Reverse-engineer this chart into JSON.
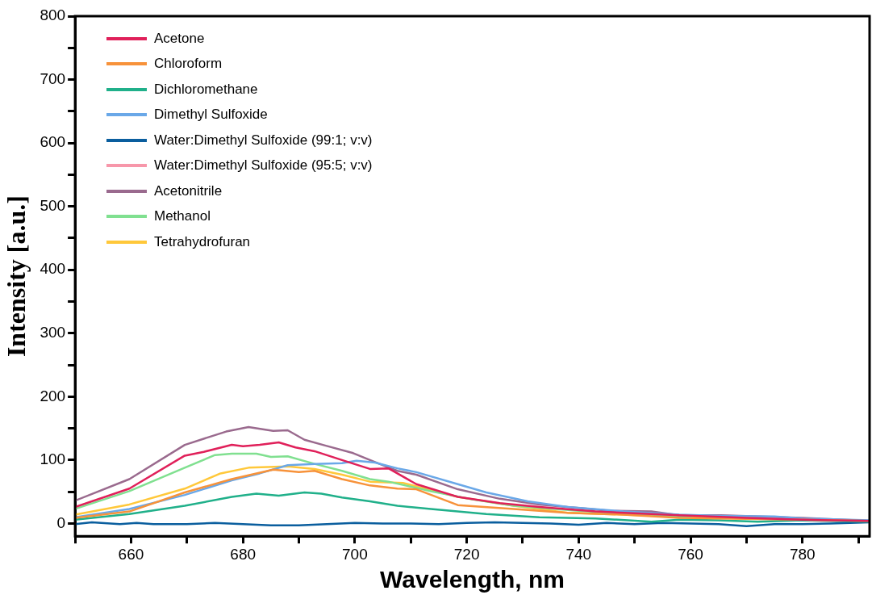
{
  "chart_data": {
    "type": "line",
    "xlabel": "Wavelength, nm",
    "ylabel": "Intensity [a.u.]",
    "xlim": [
      650,
      792
    ],
    "xticks": [
      {
        "value": 650,
        "label": null
      },
      660,
      {
        "value": 670,
        "label": null
      },
      680,
      {
        "value": 690,
        "label": null
      },
      700,
      {
        "value": 710,
        "label": null
      },
      720,
      {
        "value": 730,
        "label": null
      },
      740,
      {
        "value": 750,
        "label": null
      },
      760,
      {
        "value": 770,
        "label": null
      },
      780,
      {
        "value": 790,
        "label": null
      }
    ],
    "ylim": [
      -20,
      800
    ],
    "yticks": [
      0,
      {
        "value": 50,
        "label": null
      },
      100,
      {
        "value": 150,
        "label": null
      },
      200,
      {
        "value": 250,
        "label": null
      },
      300,
      {
        "value": 350,
        "label": null
      },
      400,
      {
        "value": 450,
        "label": null
      },
      500,
      {
        "value": 550,
        "label": null
      },
      600,
      {
        "value": 650,
        "label": null
      },
      700,
      {
        "value": 750,
        "label": null
      },
      800
    ],
    "grid": false,
    "legend": "top left",
    "marker": "none",
    "line_style": "solid",
    "series": [
      {
        "name": "Acetone",
        "color": "#e0205a",
        "x": [
          650,
          659.7,
          669.6,
          673,
          678,
          680,
          683,
          686.4,
          689.4,
          692.8,
          697.7,
          702.7,
          706,
          711,
          718.4,
          725.9,
          733,
          743,
          753,
          758,
          770,
          780,
          792
        ],
        "values": [
          26,
          55,
          107,
          113,
          124,
          122,
          124,
          128,
          120,
          114,
          100,
          86,
          87,
          62,
          42,
          32,
          26,
          19,
          15,
          13,
          9,
          6,
          4
        ]
      },
      {
        "name": "Chloroform",
        "color": "#f7923a",
        "x": [
          650,
          659.7,
          669.6,
          678,
          685.4,
          690,
          692.8,
          697.7,
          702.7,
          707.6,
          711,
          718.4,
          728.4,
          738,
          748,
          758,
          765,
          780,
          792
        ],
        "values": [
          9,
          19,
          49,
          70,
          85,
          81,
          83,
          70,
          60,
          55,
          54,
          29,
          23,
          17,
          14,
          9,
          8,
          6,
          4
        ]
      },
      {
        "name": "Dichloromethane",
        "color": "#20b08a",
        "x": [
          650,
          659.7,
          669.6,
          678,
          682.4,
          686.4,
          691,
          694,
          697.7,
          702.7,
          707.6,
          713.6,
          723.5,
          733,
          743,
          753,
          758,
          765,
          772,
          780,
          792
        ],
        "values": [
          6,
          15,
          28,
          42,
          47,
          44,
          49,
          47,
          41,
          35,
          28,
          23,
          15,
          10,
          8,
          3,
          6,
          5,
          3,
          5,
          3
        ]
      },
      {
        "name": "Dimethyl Sulfoxide",
        "color": "#6aa8e8",
        "x": [
          650,
          659.7,
          669.6,
          678,
          683,
          688,
          692.8,
          697.7,
          700.3,
          703.6,
          707.6,
          711,
          718.4,
          723.5,
          730.9,
          738,
          748,
          758,
          765,
          775,
          780,
          792
        ],
        "values": [
          10,
          23,
          45,
          68,
          79,
          92,
          94,
          95,
          99,
          96,
          87,
          81,
          62,
          49,
          35,
          26,
          19,
          14,
          12,
          11,
          8,
          5
        ]
      },
      {
        "name": "Water:Dimethyl Sulfoxide (99:1; v:v)",
        "color": "#0a5e9e",
        "x": [
          650,
          653,
          658,
          661,
          664,
          670,
          675,
          685,
          690,
          695,
          700,
          705,
          710,
          715,
          720,
          725,
          730,
          735,
          740,
          745,
          750,
          755,
          760,
          765,
          770,
          775,
          780,
          785,
          792
        ],
        "values": [
          -1,
          2,
          -1,
          1,
          -1,
          -1,
          1,
          -3,
          -3,
          -1,
          1,
          0,
          0,
          -1,
          1,
          2,
          1,
          0,
          -2,
          1,
          -1,
          1,
          0,
          -1,
          -4,
          -1,
          -1,
          0,
          2
        ]
      },
      {
        "name": "Water:Dimethyl Sulfoxide (95:5; v:v)",
        "color": "#f797aa"
      },
      {
        "name": "Acetonitrile",
        "color": "#9a6a8e",
        "x": [
          650,
          659.7,
          669.6,
          677,
          681,
          685.4,
          688,
          691,
          694.7,
          699.7,
          703.6,
          707.6,
          711,
          718.4,
          725.9,
          733,
          738,
          745.7,
          753,
          758,
          765.4,
          780,
          792
        ],
        "values": [
          36,
          70,
          124,
          145,
          152,
          146,
          147,
          132,
          123,
          111,
          97,
          83,
          77,
          54,
          39,
          30,
          26,
          20,
          19,
          13,
          13,
          9,
          4
        ]
      },
      {
        "name": "Methanol",
        "color": "#80e090",
        "x": [
          650,
          659.7,
          669.6,
          675,
          678,
          682.4,
          685,
          688,
          692.8,
          697.7,
          702.7,
          706,
          713.6,
          721,
          728.4,
          740,
          760
        ],
        "values": [
          23,
          51,
          88,
          108,
          110,
          110,
          105,
          106,
          94,
          83,
          70,
          66,
          51,
          38,
          28,
          20,
          10
        ]
      },
      {
        "name": "Tetrahydrofuran",
        "color": "#ffc83a",
        "x": [
          650,
          659.7,
          669.6,
          676,
          681,
          688,
          692.8,
          697.7,
          702.7,
          708.6,
          718.4,
          728.4,
          738,
          748,
          760,
          780,
          792
        ],
        "values": [
          14,
          30,
          55,
          79,
          88,
          90,
          86,
          77,
          66,
          64,
          42,
          28,
          17,
          14,
          10,
          6,
          4
        ]
      }
    ]
  }
}
